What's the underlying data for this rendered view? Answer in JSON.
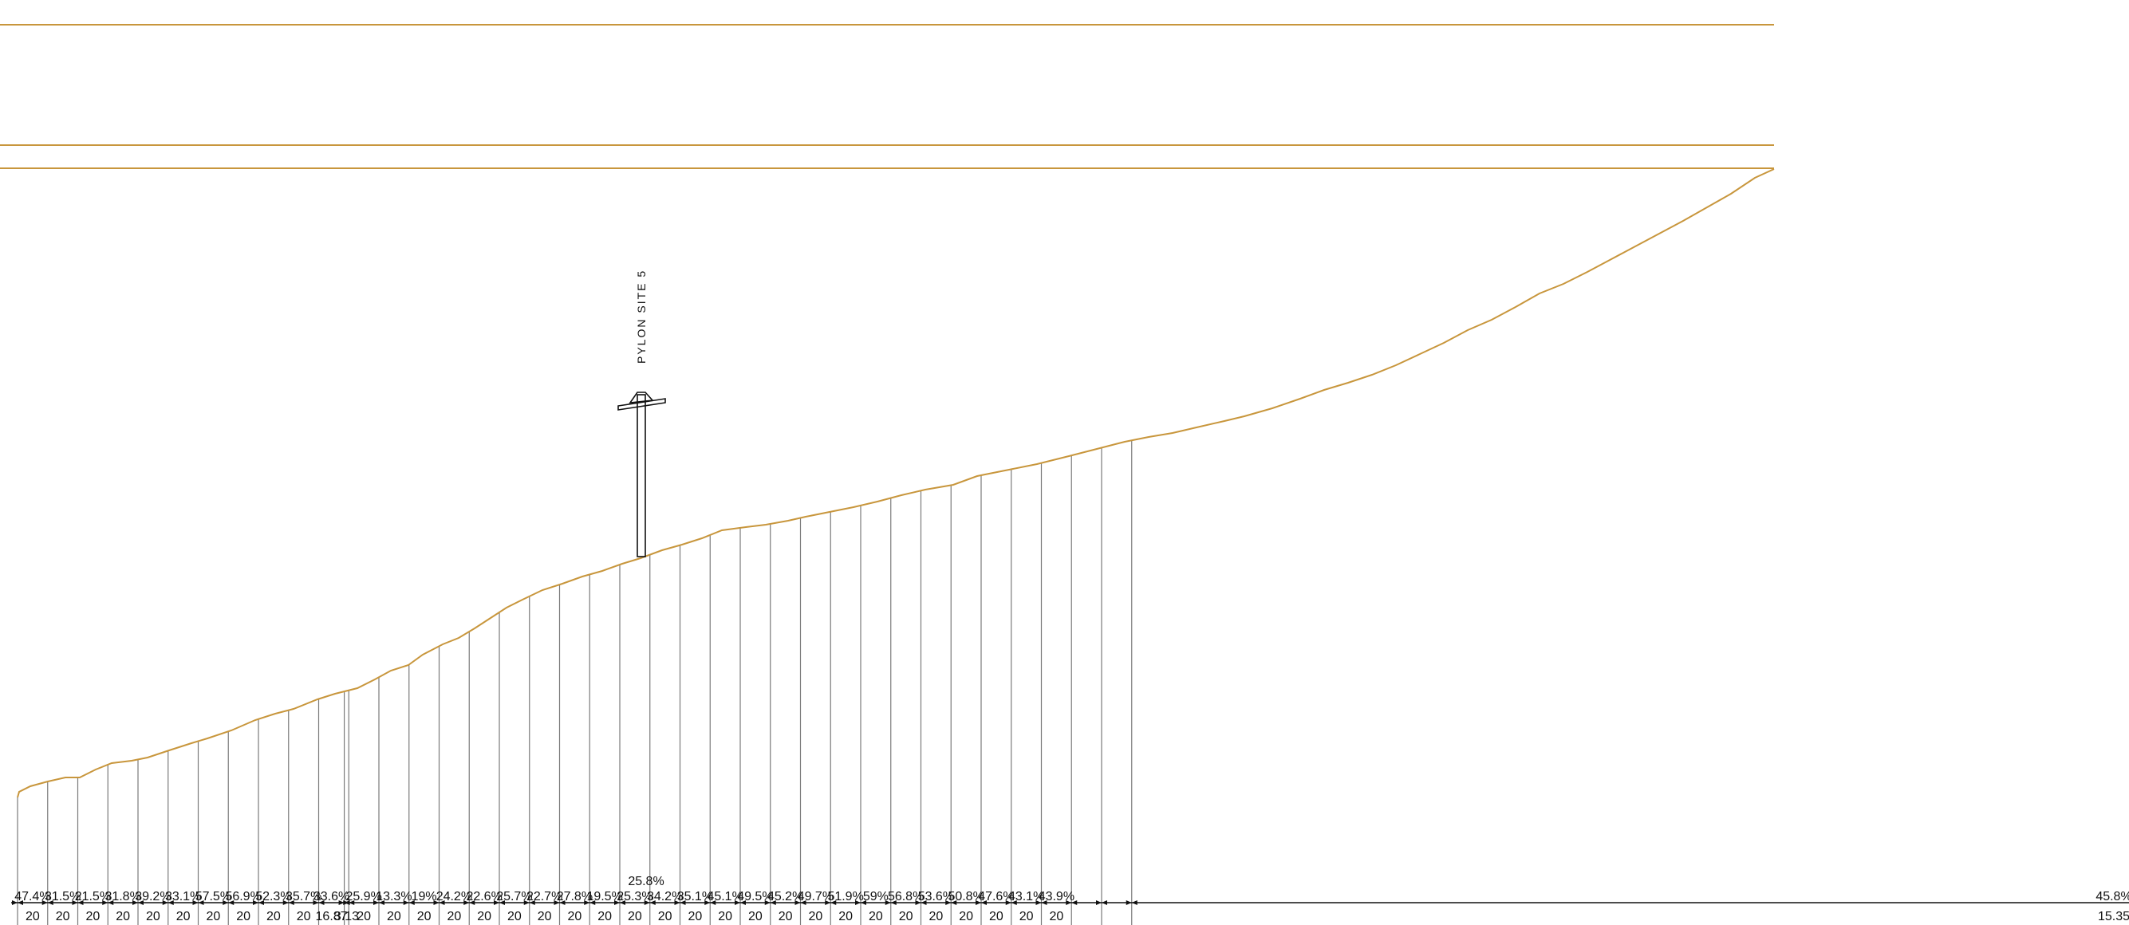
{
  "drawing": {
    "pylon_label": "PYLON SITE 5",
    "pylon_slope_label": "25.8%",
    "colors": {
      "terrain": "#c8963c",
      "overhead_lines": "#c8963c",
      "section_lines": "#7a7a7a",
      "text": "#111111",
      "background": "#ffffff"
    },
    "segments": [
      {
        "slope": "47.4%",
        "length": "20"
      },
      {
        "slope": "31.5%",
        "length": "20"
      },
      {
        "slope": "21.5%",
        "length": "20"
      },
      {
        "slope": "31.8%",
        "length": "20"
      },
      {
        "slope": "39.2%",
        "length": "20"
      },
      {
        "slope": "33.1%",
        "length": "20"
      },
      {
        "slope": "57.5%",
        "length": "20"
      },
      {
        "slope": "56.9%",
        "length": "20"
      },
      {
        "slope": "52.3%",
        "length": "20"
      },
      {
        "slope": "35.7%",
        "length": "20"
      },
      {
        "slope": "33.6%",
        "length": "16.87"
      },
      {
        "slope": "",
        "length": "3.13"
      },
      {
        "slope": "25.9%",
        "length": "20"
      },
      {
        "slope": "13.3%",
        "length": "20"
      },
      {
        "slope": "19%",
        "length": "20"
      },
      {
        "slope": "24.2%",
        "length": "20"
      },
      {
        "slope": "22.6%",
        "length": "20"
      },
      {
        "slope": "25.7%",
        "length": "20"
      },
      {
        "slope": "22.7%",
        "length": "20"
      },
      {
        "slope": "27.8%",
        "length": "20"
      },
      {
        "slope": "19.5%",
        "length": "20"
      },
      {
        "slope": "25.3%",
        "length": "20"
      },
      {
        "slope": "34.2%",
        "length": "20"
      },
      {
        "slope": "35.1%",
        "length": "20"
      },
      {
        "slope": "45.1%",
        "length": "20"
      },
      {
        "slope": "49.5%",
        "length": "20"
      },
      {
        "slope": "45.2%",
        "length": "20"
      },
      {
        "slope": "49.7%",
        "length": "20"
      },
      {
        "slope": "51.9%",
        "length": "20"
      },
      {
        "slope": "59%",
        "length": "20"
      },
      {
        "slope": "56.8%",
        "length": "20"
      },
      {
        "slope": "53.6%",
        "length": "20"
      },
      {
        "slope": "50.8%",
        "length": "20"
      },
      {
        "slope": "47.6%",
        "length": "20"
      },
      {
        "slope": "43.1%",
        "length": "20"
      },
      {
        "slope": "43.9%",
        "length": "20"
      },
      {
        "slope": "45.8%",
        "length": "15.35"
      }
    ]
  }
}
